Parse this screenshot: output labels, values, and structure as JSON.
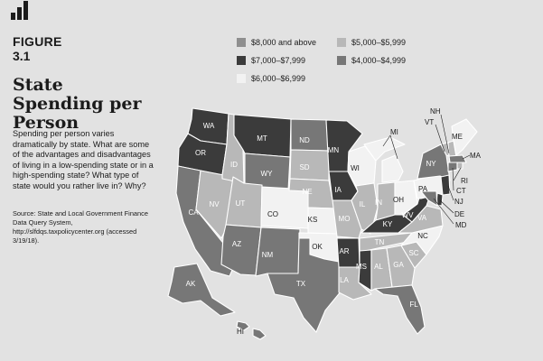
{
  "figure": {
    "label": "FIGURE",
    "number": "3.1",
    "title": "State Spending per Person",
    "body": "Spending per person varies dramatically by state. What are some of the advantages and disadvantages of living in a low-spending state or in a high-spending state? What type of state would you rather live in? Why?",
    "source": "Source: State and Local Government Finance Data Query System, http://slfdqs.taxpolicycenter.org (accessed 3/19/18)."
  },
  "legend": {
    "items": [
      {
        "key": "a",
        "label": "$8,000 and above",
        "color": "#8f8f8f"
      },
      {
        "key": "b",
        "label": "$7,000–$7,999",
        "color": "#3b3b3b"
      },
      {
        "key": "c",
        "label": "$6,000–$6,999",
        "color": "#f2f2f2"
      },
      {
        "key": "d",
        "label": "$5,000–$5,999",
        "color": "#b8b8b8"
      },
      {
        "key": "e",
        "label": "$4,000–$4,999",
        "color": "#777777"
      }
    ]
  },
  "states": {
    "WA": "b",
    "OR": "b",
    "CA": "e",
    "NV": "d",
    "ID": "d",
    "MT": "b",
    "WY": "e",
    "UT": "d",
    "AZ": "e",
    "CO": "c",
    "NM": "e",
    "ND": "e",
    "SD": "d",
    "NE": "d",
    "KS": "c",
    "OK": "c",
    "TX": "e",
    "MN": "b",
    "IA": "b",
    "MO": "d",
    "AR": "b",
    "LA": "d",
    "WI": "c",
    "IL": "d",
    "MI": "c",
    "IN": "d",
    "OH": "c",
    "KY": "b",
    "TN": "d",
    "MS": "b",
    "AL": "d",
    "GA": "d",
    "FL": "e",
    "SC": "d",
    "NC": "c",
    "VA": "d",
    "WV": "b",
    "PA": "c",
    "NY": "e",
    "VT": "d",
    "NH": "d",
    "ME": "c",
    "MA": "e",
    "RI": "d",
    "CT": "e",
    "NJ": "b",
    "DE": "b",
    "MD": "e",
    "AK": "e",
    "HI": "e"
  },
  "labels": {
    "WA": "WA",
    "OR": "OR",
    "CA": "CA",
    "NV": "NV",
    "ID": "ID",
    "MT": "MT",
    "WY": "WY",
    "UT": "UT",
    "AZ": "AZ",
    "CO": "CO",
    "NM": "NM",
    "ND": "ND",
    "SD": "SD",
    "NE": "NE",
    "KS": "KS",
    "OK": "OK",
    "TX": "TX",
    "MN": "MN",
    "IA": "IA",
    "MO": "MO",
    "AR": "AR",
    "LA": "LA",
    "WI": "WI",
    "IL": "IL",
    "MI": "MI",
    "IN": "IN",
    "OH": "OH",
    "KY": "KY",
    "TN": "TN",
    "MS": "MS",
    "AL": "AL",
    "GA": "GA",
    "FL": "FL",
    "SC": "SC",
    "NC": "NC",
    "VA": "VA",
    "WV": "WV",
    "PA": "PA",
    "NY": "NY",
    "VT": "VT",
    "NH": "NH",
    "ME": "ME",
    "MA": "MA",
    "RI": "RI",
    "CT": "CT",
    "NJ": "NJ",
    "DE": "DE",
    "MD": "MD",
    "AK": "AK",
    "HI": "HI"
  }
}
